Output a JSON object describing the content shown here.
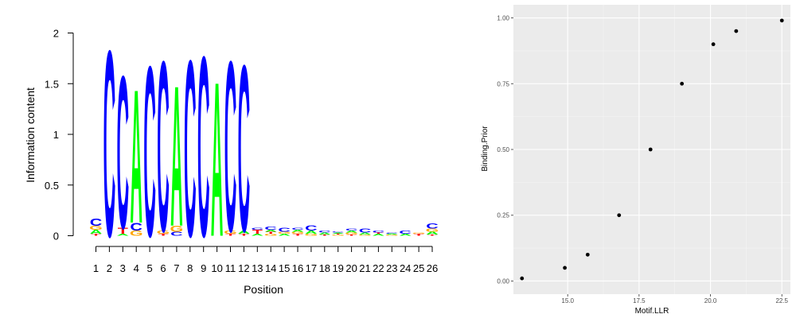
{
  "chart_data": [
    {
      "type": "sequence-logo",
      "ylabel": "Information content",
      "xlabel": "Position",
      "ylim": [
        0,
        2
      ],
      "yticks": [
        "0",
        "0.5",
        "1",
        "1.5",
        "2"
      ],
      "positions": [
        "1",
        "2",
        "3",
        "4",
        "5",
        "6",
        "7",
        "8",
        "9",
        "10",
        "11",
        "12",
        "13",
        "14",
        "15",
        "16",
        "17",
        "18",
        "19",
        "20",
        "21",
        "22",
        "23",
        "24",
        "25",
        "26"
      ],
      "colors": {
        "A": "#00ff00",
        "C": "#0000ff",
        "G": "#ffa500",
        "T": "#ff0000"
      },
      "stacks": [
        {
          "pos": 1,
          "letters": [
            {
              "l": "T",
              "h": 0.02
            },
            {
              "l": "A",
              "h": 0.04
            },
            {
              "l": "G",
              "h": 0.04
            },
            {
              "l": "C",
              "h": 0.07
            }
          ]
        },
        {
          "pos": 2,
          "letters": [
            {
              "l": "C",
              "h": 1.88
            }
          ]
        },
        {
          "pos": 3,
          "letters": [
            {
              "l": "A",
              "h": 0.02
            },
            {
              "l": "T",
              "h": 0.06
            },
            {
              "l": "C",
              "h": 1.54
            }
          ]
        },
        {
          "pos": 4,
          "letters": [
            {
              "l": "G",
              "h": 0.05
            },
            {
              "l": "C",
              "h": 0.08
            },
            {
              "l": "A",
              "h": 1.35
            }
          ]
        },
        {
          "pos": 5,
          "letters": [
            {
              "l": "C",
              "h": 1.72
            }
          ]
        },
        {
          "pos": 6,
          "letters": [
            {
              "l": "T",
              "h": 0.02
            },
            {
              "l": "G",
              "h": 0.03
            },
            {
              "l": "C",
              "h": 1.72
            }
          ]
        },
        {
          "pos": 7,
          "letters": [
            {
              "l": "C",
              "h": 0.04
            },
            {
              "l": "G",
              "h": 0.06
            },
            {
              "l": "A",
              "h": 1.42
            }
          ]
        },
        {
          "pos": 8,
          "letters": [
            {
              "l": "C",
              "h": 1.78
            }
          ]
        },
        {
          "pos": 9,
          "letters": [
            {
              "l": "C",
              "h": 1.82
            }
          ]
        },
        {
          "pos": 10,
          "letters": [
            {
              "l": "A",
              "h": 1.56
            }
          ]
        },
        {
          "pos": 11,
          "letters": [
            {
              "l": "T",
              "h": 0.02
            },
            {
              "l": "G",
              "h": 0.03
            },
            {
              "l": "C",
              "h": 1.72
            }
          ]
        },
        {
          "pos": 12,
          "letters": [
            {
              "l": "T",
              "h": 0.02
            },
            {
              "l": "A",
              "h": 0.03
            },
            {
              "l": "C",
              "h": 1.68
            }
          ]
        },
        {
          "pos": 13,
          "letters": [
            {
              "l": "A",
              "h": 0.02
            },
            {
              "l": "T",
              "h": 0.04
            },
            {
              "l": "C",
              "h": 0.02
            }
          ]
        },
        {
          "pos": 14,
          "letters": [
            {
              "l": "G",
              "h": 0.02
            },
            {
              "l": "T",
              "h": 0.02
            },
            {
              "l": "A",
              "h": 0.02
            },
            {
              "l": "C",
              "h": 0.03
            }
          ]
        },
        {
          "pos": 15,
          "letters": [
            {
              "l": "A",
              "h": 0.02
            },
            {
              "l": "G",
              "h": 0.02
            },
            {
              "l": "C",
              "h": 0.04
            }
          ]
        },
        {
          "pos": 16,
          "letters": [
            {
              "l": "T",
              "h": 0.02
            },
            {
              "l": "G",
              "h": 0.02
            },
            {
              "l": "A",
              "h": 0.02
            },
            {
              "l": "C",
              "h": 0.02
            }
          ]
        },
        {
          "pos": 17,
          "letters": [
            {
              "l": "G",
              "h": 0.02
            },
            {
              "l": "A",
              "h": 0.03
            },
            {
              "l": "C",
              "h": 0.05
            }
          ]
        },
        {
          "pos": 18,
          "letters": [
            {
              "l": "T",
              "h": 0.01
            },
            {
              "l": "A",
              "h": 0.02
            },
            {
              "l": "C",
              "h": 0.02
            }
          ]
        },
        {
          "pos": 19,
          "letters": [
            {
              "l": "G",
              "h": 0.01
            },
            {
              "l": "T",
              "h": 0.01
            },
            {
              "l": "A",
              "h": 0.01
            },
            {
              "l": "C",
              "h": 0.01
            }
          ]
        },
        {
          "pos": 20,
          "letters": [
            {
              "l": "T",
              "h": 0.01
            },
            {
              "l": "G",
              "h": 0.02
            },
            {
              "l": "A",
              "h": 0.02
            },
            {
              "l": "C",
              "h": 0.02
            }
          ]
        },
        {
          "pos": 21,
          "letters": [
            {
              "l": "G",
              "h": 0.01
            },
            {
              "l": "A",
              "h": 0.02
            },
            {
              "l": "C",
              "h": 0.04
            }
          ]
        },
        {
          "pos": 22,
          "letters": [
            {
              "l": "A",
              "h": 0.02
            },
            {
              "l": "T",
              "h": 0.01
            },
            {
              "l": "C",
              "h": 0.02
            }
          ]
        },
        {
          "pos": 23,
          "letters": [
            {
              "l": "G",
              "h": 0.01
            },
            {
              "l": "A",
              "h": 0.01
            },
            {
              "l": "C",
              "h": 0.01
            }
          ]
        },
        {
          "pos": 24,
          "letters": [
            {
              "l": "A",
              "h": 0.02
            },
            {
              "l": "C",
              "h": 0.03
            }
          ]
        },
        {
          "pos": 25,
          "letters": [
            {
              "l": "T",
              "h": 0.02
            },
            {
              "l": "G",
              "h": 0.01
            }
          ]
        },
        {
          "pos": 26,
          "letters": [
            {
              "l": "T",
              "h": 0.01
            },
            {
              "l": "A",
              "h": 0.03
            },
            {
              "l": "G",
              "h": 0.03
            },
            {
              "l": "C",
              "h": 0.05
            }
          ]
        }
      ]
    },
    {
      "type": "scatter",
      "xlabel": "Motif.LLR",
      "ylabel": "Binding.Prior",
      "xlim": [
        13.1,
        22.8
      ],
      "ylim": [
        -0.05,
        1.05
      ],
      "xticks": [
        15.0,
        17.5,
        20.0,
        22.5
      ],
      "xtick_labels": [
        "15.0",
        "17.5",
        "20.0",
        "22.5"
      ],
      "yticks": [
        0.0,
        0.25,
        0.5,
        0.75,
        1.0
      ],
      "ytick_labels": [
        "0.00",
        "0.25",
        "0.50",
        "0.75",
        "1.00"
      ],
      "grid": true,
      "panel_background": "#ebebeb",
      "point_color": "#000000",
      "points": [
        {
          "x": 13.4,
          "y": 0.01
        },
        {
          "x": 14.9,
          "y": 0.05
        },
        {
          "x": 15.7,
          "y": 0.1
        },
        {
          "x": 16.8,
          "y": 0.25
        },
        {
          "x": 17.9,
          "y": 0.5
        },
        {
          "x": 19.0,
          "y": 0.75
        },
        {
          "x": 20.1,
          "y": 0.9
        },
        {
          "x": 20.9,
          "y": 0.95
        },
        {
          "x": 22.5,
          "y": 0.99
        }
      ]
    }
  ]
}
